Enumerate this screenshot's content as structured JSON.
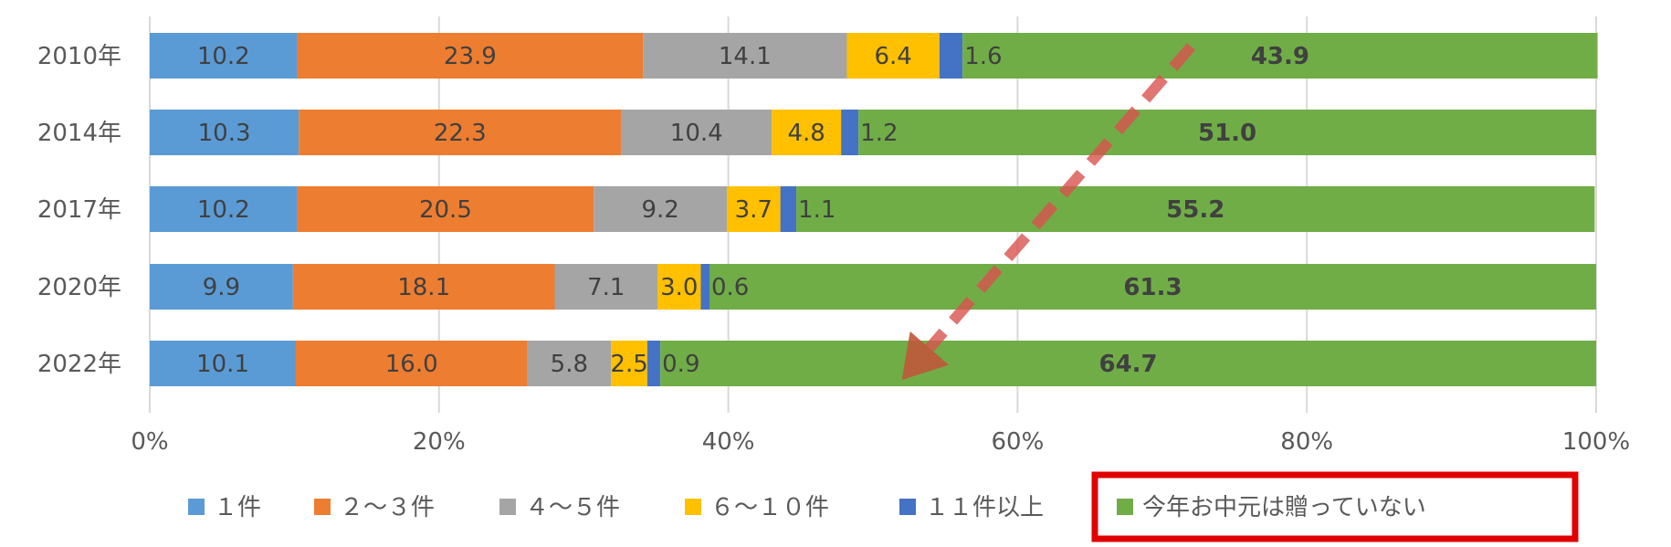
{
  "chart_data": {
    "type": "bar",
    "orientation": "horizontal",
    "stacked": true,
    "categories": [
      "2010年",
      "2014年",
      "2017年",
      "2020年",
      "2022年"
    ],
    "series": [
      {
        "name": "１件",
        "color": "#5B9BD5",
        "values": [
          10.2,
          10.3,
          10.2,
          9.9,
          10.1
        ]
      },
      {
        "name": "２～３件",
        "color": "#ED7D31",
        "values": [
          23.9,
          22.3,
          20.5,
          18.1,
          16.0
        ]
      },
      {
        "name": "４～５件",
        "color": "#A5A5A5",
        "values": [
          14.1,
          10.4,
          9.2,
          7.1,
          5.8
        ]
      },
      {
        "name": "６～１０件",
        "color": "#FFC000",
        "values": [
          6.4,
          4.8,
          3.7,
          3.0,
          2.5
        ]
      },
      {
        "name": "１１件以上",
        "color": "#4472C4",
        "values": [
          1.6,
          1.2,
          1.1,
          0.6,
          0.9
        ]
      },
      {
        "name": "今年お中元は贈っていない",
        "color": "#70AD47",
        "values": [
          43.9,
          51.0,
          55.2,
          61.3,
          64.7
        ]
      }
    ],
    "value_labels": [
      [
        "10.2",
        "23.9",
        "14.1",
        "6.4",
        "1.6",
        "43.9"
      ],
      [
        "10.3",
        "22.3",
        "10.4",
        "4.8",
        "1.2",
        "51.0"
      ],
      [
        "10.2",
        "20.5",
        "9.2",
        "3.7",
        "1.1",
        "55.2"
      ],
      [
        "9.9",
        "18.1",
        "7.1",
        "3.0",
        "0.6",
        "61.3"
      ],
      [
        "10.1",
        "16.0",
        "5.8",
        "2.5",
        "0.9",
        "64.7"
      ]
    ],
    "xlim": [
      0,
      100
    ],
    "x_ticks": [
      "0%",
      "20%",
      "40%",
      "60%",
      "80%",
      "100%"
    ],
    "grid": true,
    "legend_position": "bottom",
    "highlighted_legend_entry": "今年お中元は贈っていない",
    "highlight_color": "#E00000",
    "annotation": {
      "type": "dashed-arrow",
      "color": "#D9534F",
      "from_value": 72,
      "from_category": "2010年",
      "to_value": 52,
      "to_category": "2022年"
    }
  }
}
